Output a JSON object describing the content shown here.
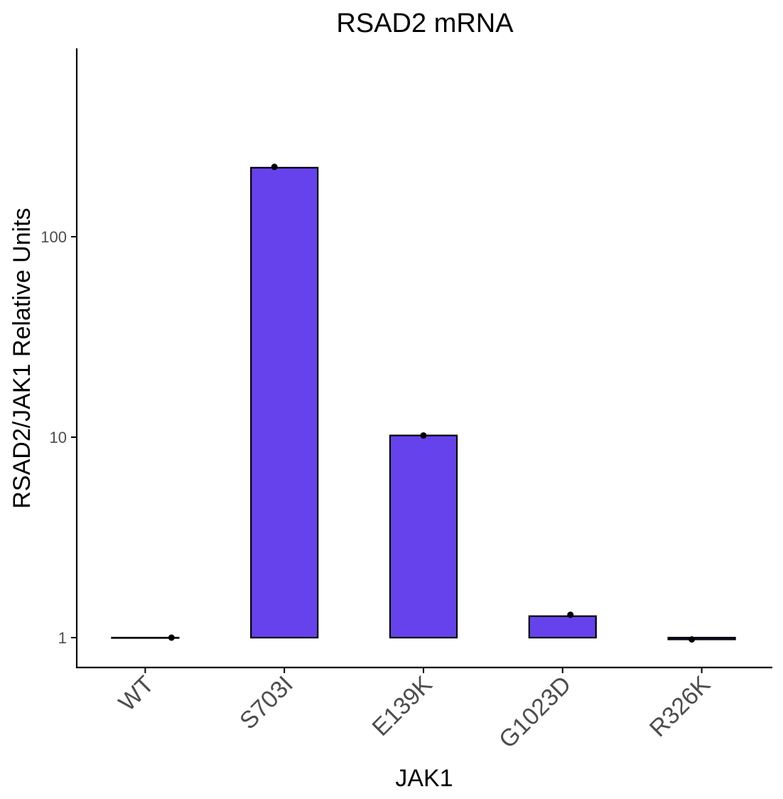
{
  "chart_data": {
    "type": "bar",
    "title": "RSAD2 mRNA",
    "xlabel": "JAK1",
    "ylabel": "RSAD2/JAK1 Relative Units",
    "categories": [
      "WT",
      "S703I",
      "E139K",
      "G1023D",
      "R326K"
    ],
    "values": [
      1.0,
      221,
      10.2,
      1.28,
      0.98
    ],
    "points": [
      1.0,
      223,
      10.2,
      1.3,
      0.98
    ],
    "y_scale": "log10",
    "ylim": [
      0.7,
      720
    ],
    "y_ticks": [
      1,
      10,
      100
    ],
    "y_tick_labels": [
      "1",
      "10",
      "100"
    ],
    "grid": false,
    "legend": "none",
    "colors": {
      "bar_fill": "#6642ED",
      "bar_stroke": "#000000",
      "point": "#000000",
      "axis": "#000000",
      "tick_label": "#4d4d4d"
    }
  }
}
